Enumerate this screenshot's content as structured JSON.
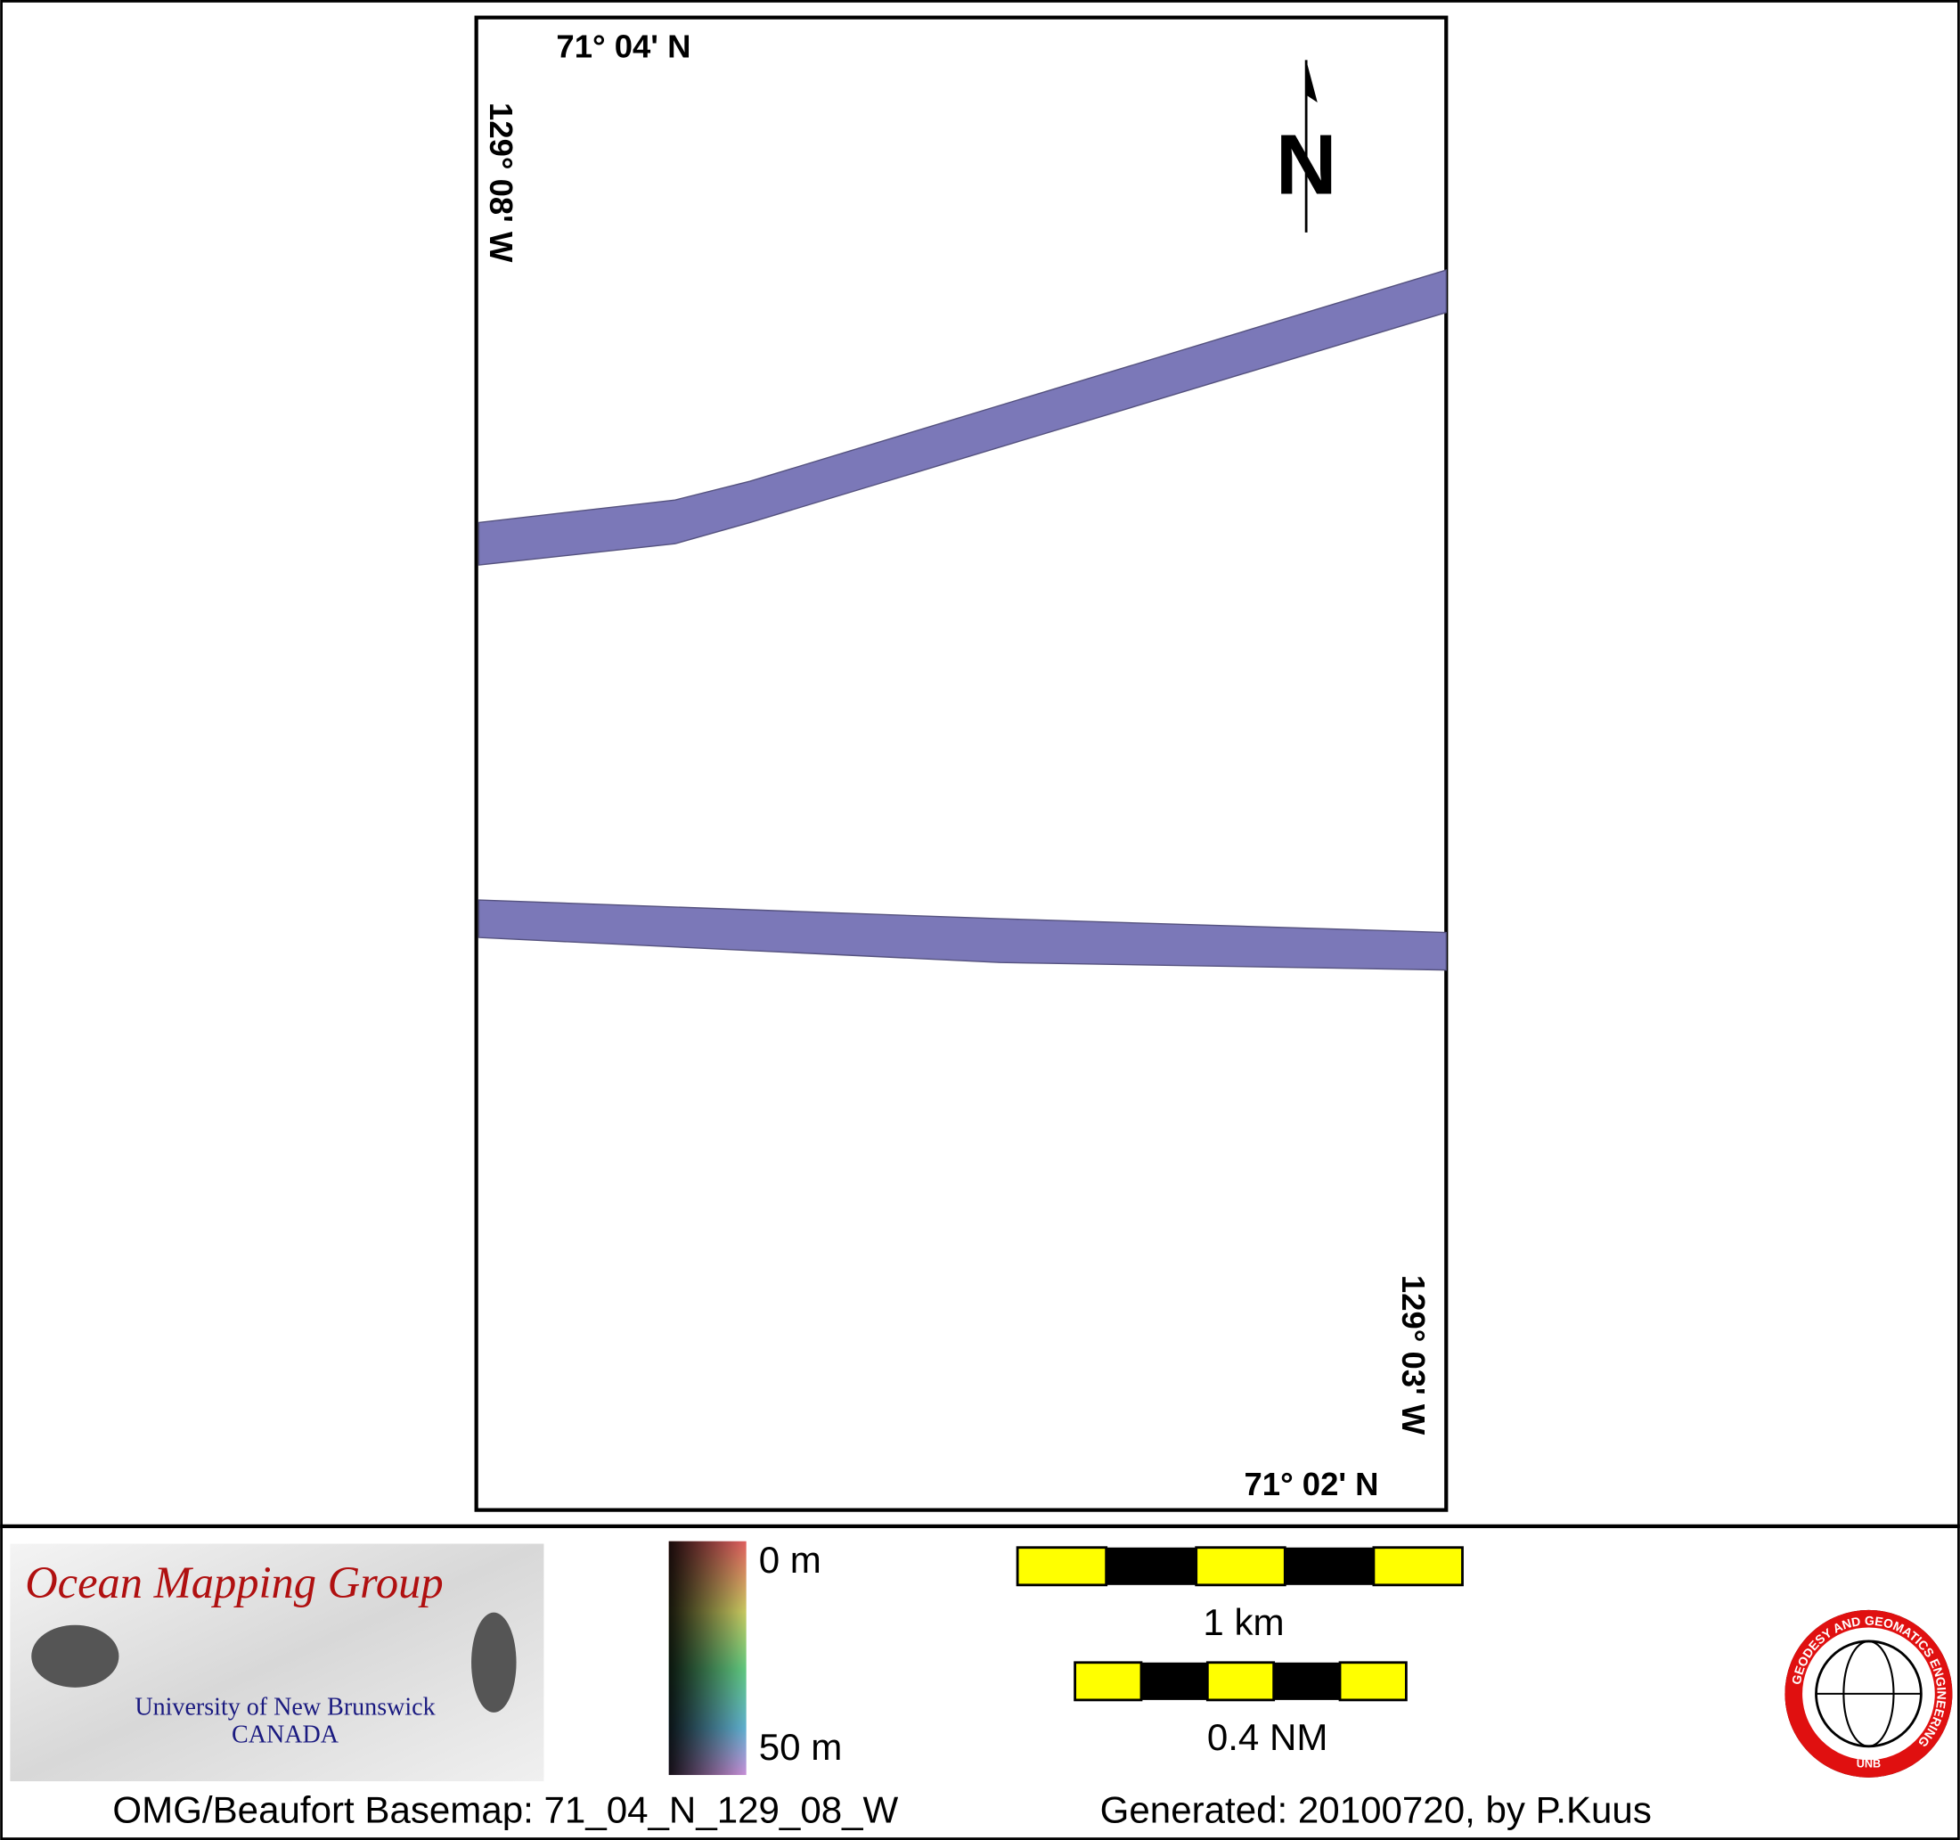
{
  "map": {
    "labels": {
      "top_lat": "71° 04' N",
      "left_lon": "129° 08' W",
      "right_lon": "129° 03' W",
      "bottom_lat": "71° 02' N"
    },
    "north": "N"
  },
  "legend": {
    "top": "0 m",
    "bottom": "50 m"
  },
  "scale_bars": [
    "1 km",
    "0.4 NM"
  ],
  "omg_logo": {
    "title": "Ocean Mapping Group",
    "line1": "University of New Brunswick",
    "line2": "CANADA"
  },
  "unb_logo": {
    "ring": "GEODESY AND GEOMATICS ENGINEERING",
    "bottom": "UNB"
  },
  "footer": {
    "basemap": "OMG/Beaufort Basemap: 71_04_N_129_08_W",
    "generated": "Generated: 20100720, by P.Kuus"
  }
}
